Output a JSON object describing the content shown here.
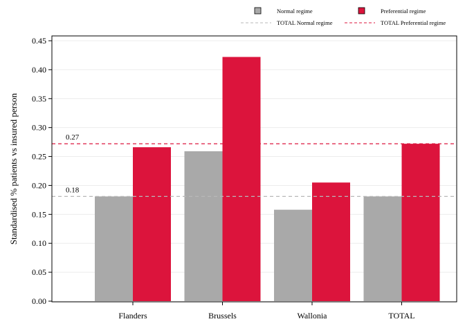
{
  "chart_data": {
    "type": "bar",
    "title": "",
    "xlabel": "",
    "ylabel": "Standardised % patients vs insured person",
    "categories": [
      "Flanders",
      "Brussels",
      "Wallonia",
      "TOTAL"
    ],
    "series": [
      {
        "name": "Normal regime",
        "color": "#a9a9a9",
        "values": [
          0.181,
          0.259,
          0.158,
          0.181
        ]
      },
      {
        "name": "Preferential regime",
        "color": "#dc143c",
        "values": [
          0.266,
          0.422,
          0.205,
          0.272
        ]
      }
    ],
    "reference_lines": [
      {
        "name": "TOTAL Normal regime",
        "value": 0.181,
        "label": "0.18",
        "color": "#b8b8b8",
        "style": "dashed"
      },
      {
        "name": "TOTAL Preferential regime",
        "value": 0.272,
        "label": "0.27",
        "color": "#dc143c",
        "style": "dashed"
      }
    ],
    "ylim": [
      0,
      0.45
    ],
    "yticks": [
      "0.00",
      "0.05",
      "0.10",
      "0.15",
      "0.20",
      "0.25",
      "0.30",
      "0.35",
      "0.40",
      "0.45"
    ],
    "grid": true,
    "legend_position": "top-right"
  }
}
